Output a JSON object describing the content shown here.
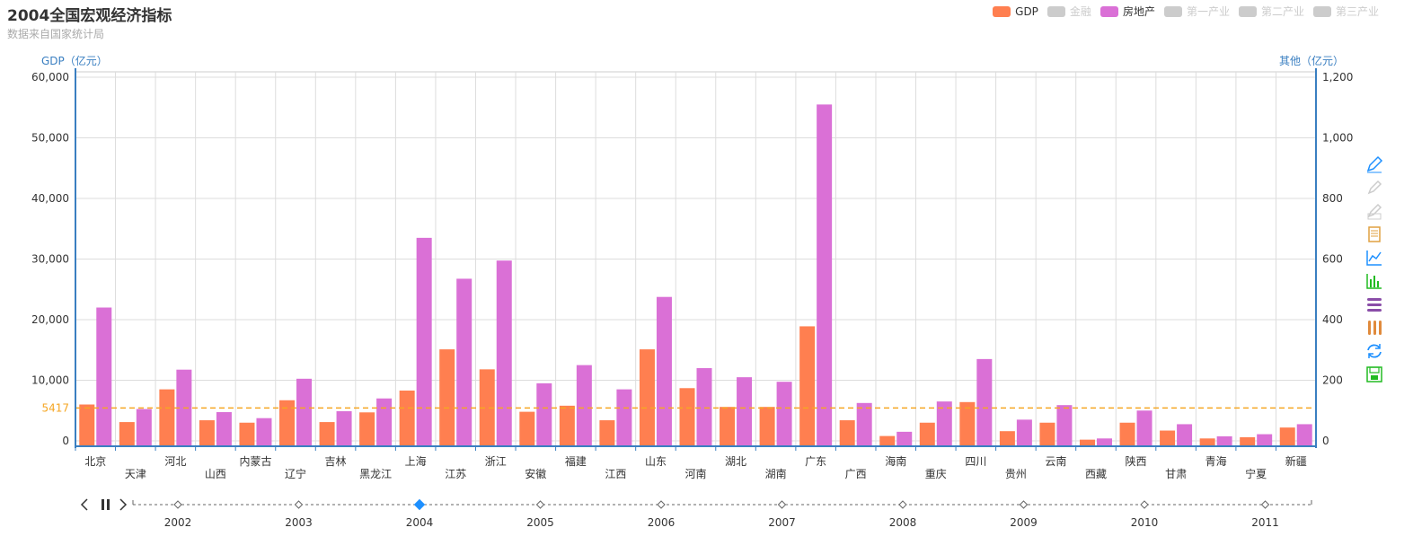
{
  "title": "2004全国宏观经济指标",
  "subtitle": "数据来自国家统计局",
  "legend": [
    {
      "name": "GDP",
      "color": "#ff7f50",
      "active": true
    },
    {
      "name": "金融",
      "color": "#cccccc",
      "active": false
    },
    {
      "name": "房地产",
      "color": "#da70d6",
      "active": true
    },
    {
      "name": "第一产业",
      "color": "#cccccc",
      "active": false
    },
    {
      "name": "第二产业",
      "color": "#cccccc",
      "active": false
    },
    {
      "name": "第三产业",
      "color": "#cccccc",
      "active": false
    }
  ],
  "chart_data": {
    "type": "bar",
    "categories": [
      "北京",
      "天津",
      "河北",
      "山西",
      "内蒙古",
      "辽宁",
      "吉林",
      "黑龙江",
      "上海",
      "江苏",
      "浙江",
      "安徽",
      "福建",
      "江西",
      "山东",
      "河南",
      "湖北",
      "湖南",
      "广东",
      "广西",
      "海南",
      "重庆",
      "四川",
      "贵州",
      "云南",
      "西藏",
      "陕西",
      "甘肃",
      "青海",
      "宁夏",
      "新疆"
    ],
    "series": [
      {
        "name": "GDP",
        "axis": "left",
        "color": "#ff7f50",
        "values": [
          6000,
          3100,
          8500,
          3400,
          3000,
          6700,
          3100,
          4700,
          8300,
          15100,
          11800,
          4800,
          5800,
          3400,
          15100,
          8700,
          5600,
          5600,
          18900,
          3400,
          800,
          3000,
          6400,
          1600,
          3000,
          200,
          3000,
          1700,
          400,
          600,
          2200
        ]
      },
      {
        "name": "房地产",
        "axis": "right",
        "color": "#da70d6",
        "values": [
          440,
          105,
          235,
          95,
          75,
          205,
          98,
          140,
          670,
          535,
          595,
          190,
          250,
          170,
          475,
          240,
          210,
          195,
          1110,
          125,
          30,
          130,
          270,
          70,
          118,
          8,
          100,
          55,
          15,
          22,
          55
        ]
      }
    ],
    "yaxis_left": {
      "name": "GDP（亿元）",
      "ticks": [
        "0",
        "10,000",
        "20,000",
        "30,000",
        "40,000",
        "50,000",
        "60,000"
      ],
      "min": 0,
      "max": 60000
    },
    "yaxis_right": {
      "name": "其他（亿元）",
      "ticks": [
        "0",
        "200",
        "400",
        "600",
        "800",
        "1,000",
        "1,200"
      ],
      "min": 0,
      "max": 1200
    },
    "markline": {
      "value": 5417,
      "label": "5417",
      "color": "#f5a623"
    },
    "grid": true
  },
  "timeline": {
    "years": [
      "2002",
      "2003",
      "2004",
      "2005",
      "2006",
      "2007",
      "2008",
      "2009",
      "2010",
      "2011"
    ],
    "current": "2004"
  },
  "toolbox": [
    {
      "name": "mark-icon",
      "color": "#1e90ff"
    },
    {
      "name": "mark-undo-icon",
      "color": "#cccccc"
    },
    {
      "name": "mark-clear-icon",
      "color": "#cccccc"
    },
    {
      "name": "data-view-icon",
      "color": "#e0a040"
    },
    {
      "name": "line-chart-icon",
      "color": "#1e90ff"
    },
    {
      "name": "bar-chart-icon",
      "color": "#22bb22"
    },
    {
      "name": "stack-icon",
      "color": "#8a4da8"
    },
    {
      "name": "tiled-icon",
      "color": "#e08a3c"
    },
    {
      "name": "restore-icon",
      "color": "#1e90ff"
    },
    {
      "name": "save-image-icon",
      "color": "#22bb22"
    }
  ]
}
